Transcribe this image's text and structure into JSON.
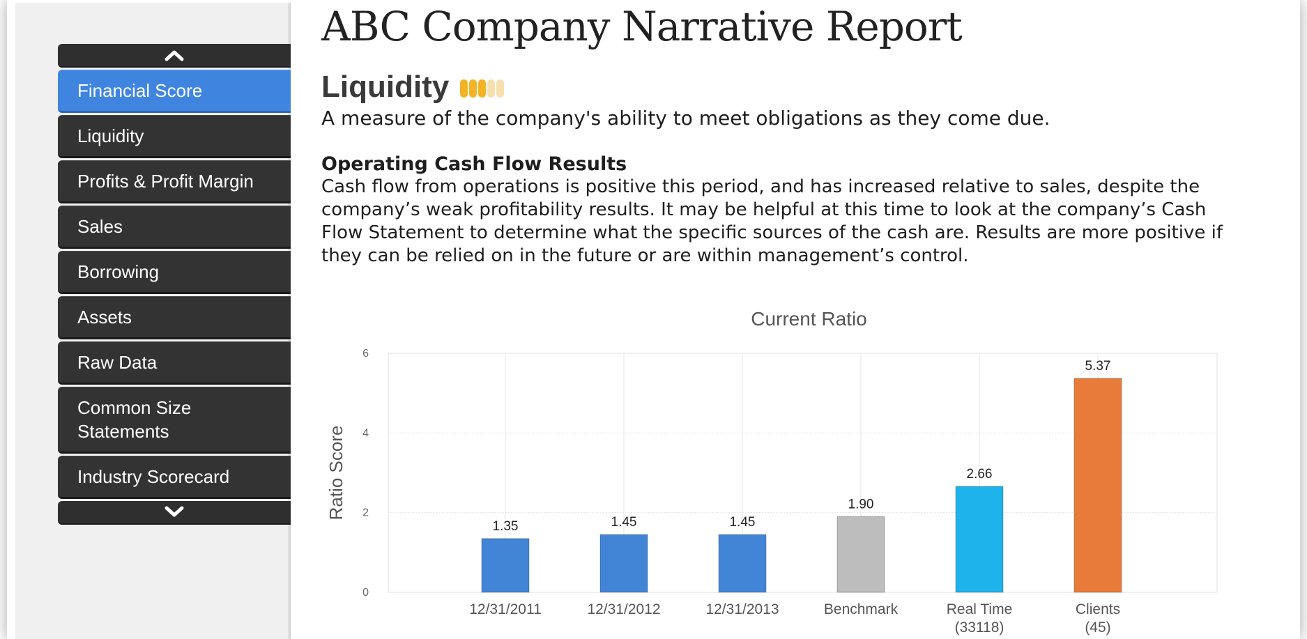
{
  "report": {
    "title": "ABC Company Narrative Report"
  },
  "nav": {
    "up_icon": "chevron-up-icon",
    "down_icon": "chevron-down-icon",
    "items": [
      {
        "label": "Financial Score",
        "active": true
      },
      {
        "label": "Liquidity"
      },
      {
        "label": "Profits & Profit Margin"
      },
      {
        "label": "Sales"
      },
      {
        "label": "Borrowing"
      },
      {
        "label": "Assets"
      },
      {
        "label": "Raw Data"
      },
      {
        "label": "Common Size Statements"
      },
      {
        "label": "Industry Scorecard"
      }
    ]
  },
  "section": {
    "title": "Liquidity",
    "score": {
      "filled": 3,
      "total": 5,
      "color_on": "#f2b326",
      "color_off": "#f6e0b0"
    },
    "description": "A measure of the company's ability to meet obligations as they come due."
  },
  "ocf": {
    "heading": "Operating Cash Flow Results",
    "body": "Cash flow from operations is positive this period, and has increased relative to sales, despite the company’s weak profitability results. It may be helpful at this time to look at the company’s Cash Flow Statement to determine what the specific sources of the cash are. Results are more positive if they can be relied on in the future or are within management’s control."
  },
  "chart_data": {
    "type": "bar",
    "title": "Current Ratio",
    "ylabel": "Ratio Score",
    "xlabel": "",
    "ylim": [
      0,
      6
    ],
    "yticks": [
      0,
      2,
      4,
      6
    ],
    "grid": true,
    "categories": [
      [
        "12/31/2011"
      ],
      [
        "12/31/2012"
      ],
      [
        "12/31/2013"
      ],
      [
        "Benchmark"
      ],
      [
        "Real Time",
        "(33118)"
      ],
      [
        "Clients",
        "(45)"
      ]
    ],
    "values": [
      1.35,
      1.45,
      1.45,
      1.9,
      2.66,
      5.37
    ],
    "value_labels": [
      "1.35",
      "1.45",
      "1.45",
      "1.90",
      "2.66",
      "5.37"
    ],
    "colors": [
      "#4285d7",
      "#4285d7",
      "#4285d7",
      "#bdbdbd",
      "#1eb3ea",
      "#e97b3a"
    ]
  }
}
